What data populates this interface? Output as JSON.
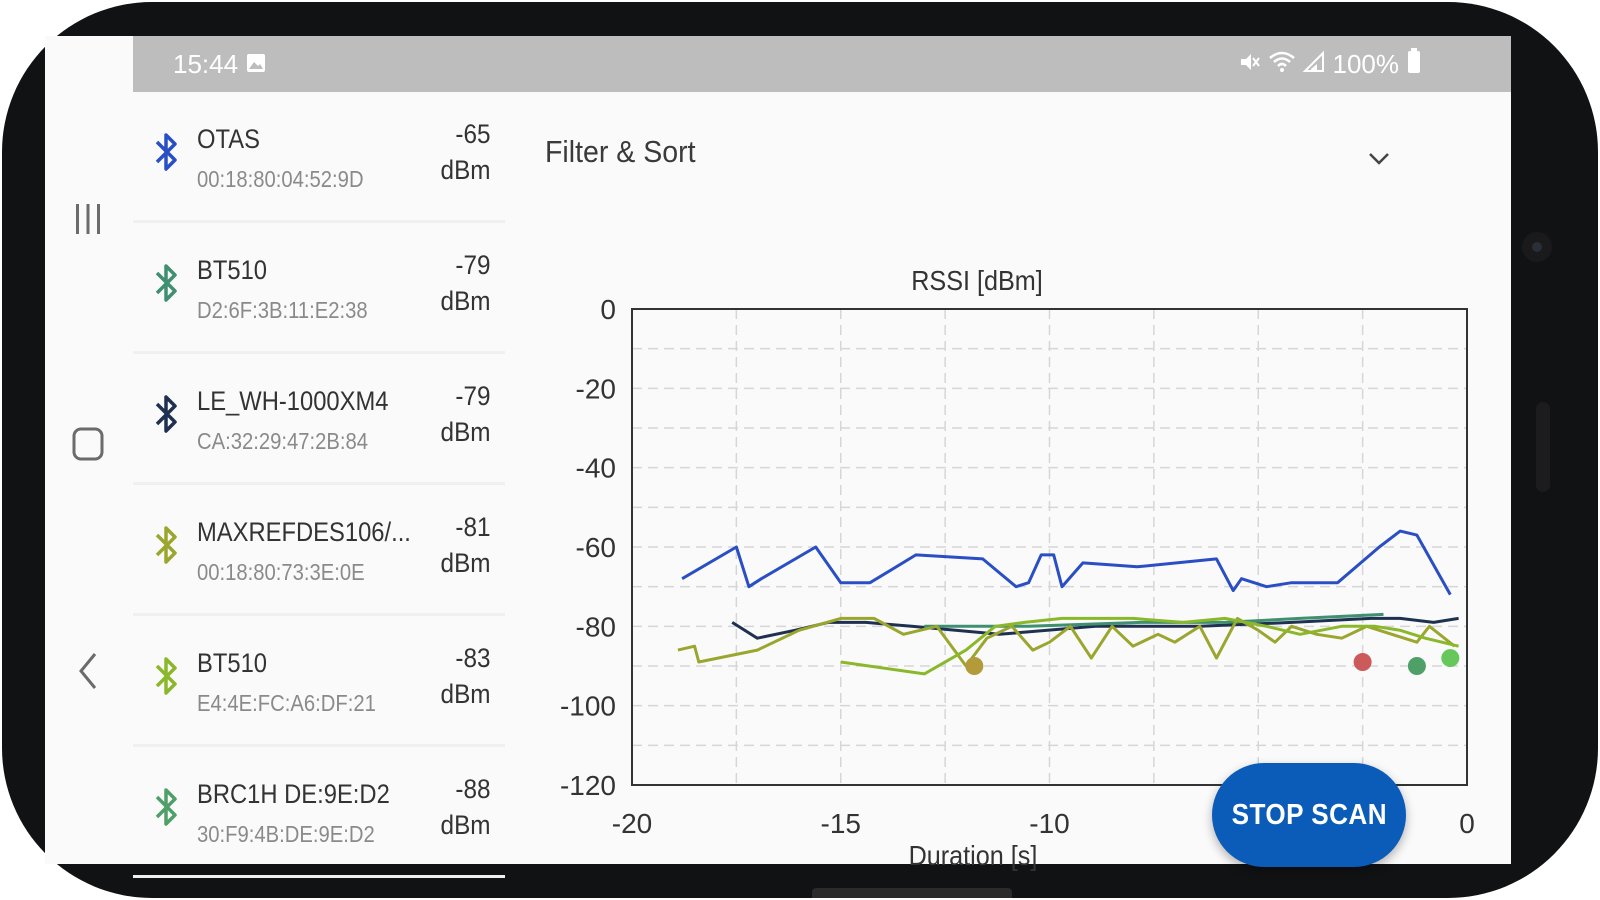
{
  "status_bar": {
    "time": "15:44",
    "battery": "100%",
    "icons": [
      "gallery-icon",
      "mute-icon",
      "wifi-icon",
      "signal-icon",
      "battery-icon"
    ]
  },
  "nav_buttons": [
    "recents-icon",
    "home-icon",
    "back-icon"
  ],
  "devices": [
    {
      "name": "OTAS",
      "mac": "00:18:80:04:52:9D",
      "rssi": "-65",
      "unit": "dBm",
      "color": "#2a4ec4"
    },
    {
      "name": "BT510",
      "mac": "D2:6F:3B:11:E2:38",
      "rssi": "-79",
      "unit": "dBm",
      "color": "#3f8f70"
    },
    {
      "name": "LE_WH-1000XM4",
      "mac": "CA:32:29:47:2B:84",
      "rssi": "-79",
      "unit": "dBm",
      "color": "#1f3150"
    },
    {
      "name": "MAXREFDES106/...",
      "mac": "00:18:80:73:3E:0E",
      "rssi": "-81",
      "unit": "dBm",
      "color": "#9aa62e"
    },
    {
      "name": "BT510",
      "mac": "E4:4E:FC:A6:DF:21",
      "rssi": "-83",
      "unit": "dBm",
      "color": "#8bb82a"
    },
    {
      "name": "BRC1H DE:9E:D2",
      "mac": "30:F9:4B:DE:9E:D2",
      "rssi": "-88",
      "unit": "dBm",
      "color": "#4fa068"
    }
  ],
  "filter": {
    "title": "Filter & Sort",
    "icon": "chevron-down-icon"
  },
  "chart_data": {
    "type": "line",
    "title": "RSSI [dBm]",
    "xlabel": "Duration [s]",
    "ylabel": "",
    "xlim": [
      -20,
      0
    ],
    "ylim": [
      -120,
      0
    ],
    "x_ticks": [
      "-20",
      "-15",
      "-10",
      "-5",
      "0"
    ],
    "y_ticks": [
      "0",
      "-20",
      "-40",
      "-60",
      "-80",
      "-100",
      "-120"
    ],
    "grid": true,
    "series": [
      {
        "color": "#2a4ec4",
        "x": [
          -18.8,
          -17.5,
          -17.2,
          -16.9,
          -15.6,
          -15.0,
          -14.3,
          -13.2,
          -11.6,
          -10.8,
          -10.5,
          -10.2,
          -9.9,
          -9.7,
          -9.2,
          -7.9,
          -6.0,
          -5.6,
          -5.4,
          -4.8,
          -4.2,
          -3.1,
          -2.1,
          -1.6,
          -1.2,
          -0.4
        ],
        "y": [
          -68,
          -60,
          -70,
          -68,
          -60,
          -69,
          -69,
          -62,
          -63,
          -70,
          -69,
          -62,
          -62,
          -70,
          -64,
          -65,
          -63,
          -71,
          -68,
          -70,
          -69,
          -69,
          -60,
          -56,
          -57,
          -72
        ]
      },
      {
        "color": "#1f3150",
        "x": [
          -17.6,
          -17.0,
          -16.1,
          -15.3,
          -14.4,
          -13.3,
          -11.2,
          -8.9,
          -6.4,
          -4.2,
          -2.3,
          -1.6,
          -0.8,
          -0.2
        ],
        "y": [
          -79,
          -83,
          -81,
          -79,
          -79,
          -80,
          -82,
          -80,
          -80,
          -79,
          -78,
          -78,
          -79,
          -78
        ]
      },
      {
        "color": "#3f8f70",
        "x": [
          -13.0,
          -10.5,
          -7.8,
          -5.8,
          -4.0,
          -2.0
        ],
        "y": [
          -80,
          -80,
          -79,
          -79,
          -78,
          -77
        ]
      },
      {
        "color": "#9aa62e",
        "x": [
          -18.9,
          -18.5,
          -18.4,
          -17.0,
          -16.0,
          -15.0,
          -14.2,
          -13.5,
          -12.7,
          -12.0,
          -11.5,
          -10.9,
          -10.4,
          -10.0,
          -9.5,
          -9.0,
          -8.5,
          -8.0,
          -7.4,
          -7.0,
          -6.4,
          -6.0,
          -5.5,
          -5.0,
          -4.6,
          -4.2,
          -3.6,
          -3.0,
          -2.4,
          -1.8,
          -1.2,
          -0.9,
          -0.3
        ],
        "y": [
          -86,
          -85,
          -89,
          -86,
          -81,
          -78,
          -78,
          -82,
          -80,
          -90,
          -83,
          -80,
          -86,
          -84,
          -80,
          -88,
          -80,
          -85,
          -82,
          -84,
          -80,
          -88,
          -78,
          -81,
          -84,
          -80,
          -82,
          -83,
          -80,
          -82,
          -84,
          -80,
          -85
        ]
      },
      {
        "color": "#8bb82a",
        "x": [
          -15.0,
          -13.0,
          -12.0,
          -11.3,
          -10.6,
          -9.7,
          -8.0,
          -6.8,
          -5.8,
          -4.8,
          -4.0,
          -3.0,
          -2.2,
          -1.6,
          -1.0,
          -0.2
        ],
        "y": [
          -89,
          -92,
          -86,
          -80,
          -79,
          -78,
          -78,
          -79,
          -78,
          -80,
          -82,
          -80,
          -80,
          -81,
          -83,
          -85
        ]
      },
      {
        "color": "#b39a3a",
        "x": [
          -11.8
        ],
        "y": [
          -90
        ]
      },
      {
        "color": "#cc5a5a",
        "x": [
          -2.5
        ],
        "y": [
          -89
        ]
      },
      {
        "color": "#4fa068",
        "x": [
          -1.2
        ],
        "y": [
          -90
        ]
      },
      {
        "color": "#66c75a",
        "x": [
          -0.4
        ],
        "y": [
          -88
        ]
      }
    ]
  },
  "fab": {
    "label": "STOP SCAN",
    "color": "#0a5cb8"
  }
}
